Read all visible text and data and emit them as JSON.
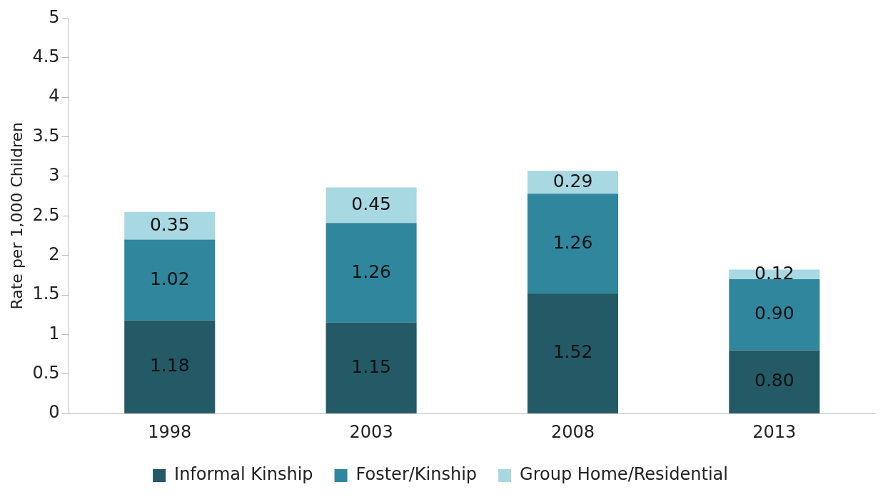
{
  "chart_data": {
    "type": "bar",
    "stacked": true,
    "ylabel": "Rate per 1,000 Children",
    "categories": [
      "1998",
      "2003",
      "2008",
      "2013"
    ],
    "series": [
      {
        "name": "Informal Kinship",
        "color": "#235a66",
        "values": [
          1.18,
          1.15,
          1.52,
          0.8
        ],
        "value_labels": [
          "1.18",
          "1.15",
          "1.52",
          "0.80"
        ]
      },
      {
        "name": "Foster/Kinship",
        "color": "#2f869d",
        "values": [
          1.02,
          1.26,
          1.26,
          0.9
        ],
        "value_labels": [
          "1.02",
          "1.26",
          "1.26",
          "0.90"
        ]
      },
      {
        "name": "Group Home/Residential",
        "color": "#a8d8e2",
        "values": [
          0.35,
          0.45,
          0.29,
          0.12
        ],
        "value_labels": [
          "0.35",
          "0.45",
          "0.29",
          "0.12"
        ]
      }
    ],
    "ylim": [
      0,
      5
    ],
    "yticks": [
      0,
      0.5,
      1,
      1.5,
      2,
      2.5,
      3,
      3.5,
      4,
      4.5,
      5
    ],
    "grid": false,
    "legend": "bottom"
  }
}
